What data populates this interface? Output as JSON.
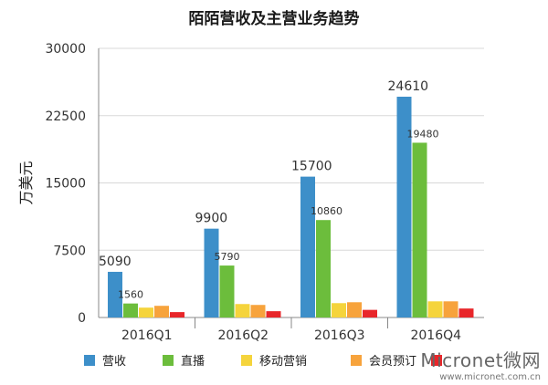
{
  "chart_data": {
    "type": "bar",
    "title": "陌陌营收及主营业务趋势",
    "ylabel": "万美元",
    "xlabel": "",
    "ylim": [
      0,
      30000
    ],
    "yticks": [
      0,
      7500,
      15000,
      22500,
      30000
    ],
    "grid": true,
    "legend_position": "bottom",
    "categories": [
      "2016Q1",
      "2016Q2",
      "2016Q3",
      "2016Q4"
    ],
    "series": [
      {
        "name": "营收",
        "color": "#3d8fc9",
        "values": [
          5090,
          9900,
          15700,
          24610
        ],
        "labels": [
          "5090",
          "9900",
          "15700",
          "24610"
        ]
      },
      {
        "name": "直播",
        "color": "#6cbd3c",
        "values": [
          1560,
          5790,
          10860,
          19480
        ],
        "labels": [
          "1560",
          "5790",
          "10860",
          "19480"
        ]
      },
      {
        "name": "移动营销",
        "color": "#f5d43c",
        "values": [
          1100,
          1500,
          1600,
          1800
        ],
        "labels": []
      },
      {
        "name": "会员预订",
        "color": "#f7a33c",
        "values": [
          1300,
          1400,
          1700,
          1800
        ],
        "labels": []
      },
      {
        "name": "",
        "color": "#e8262a",
        "values": [
          600,
          700,
          850,
          1000
        ],
        "labels": []
      }
    ]
  },
  "watermark": {
    "brand": "Micronet微网",
    "url": "www.micronet.com.cn"
  }
}
